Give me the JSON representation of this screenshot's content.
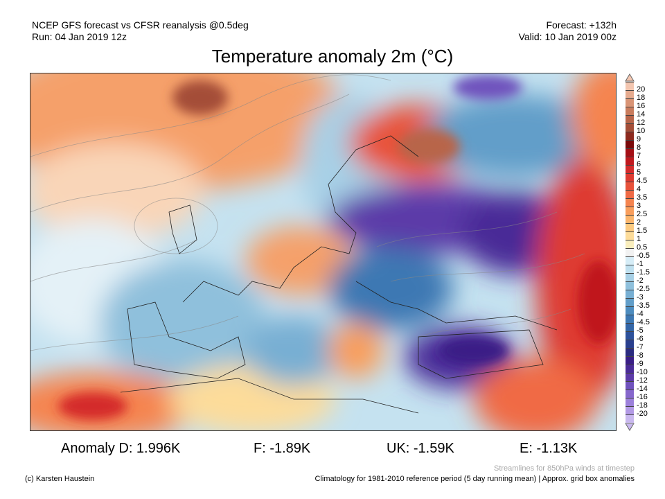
{
  "header": {
    "left_line1": "NCEP GFS forecast vs CFSR reanalysis @0.5deg",
    "left_line2": "Run: 04 Jan 2019 12z",
    "right_line1": "Forecast: +132h",
    "right_line2": "Valid: 10 Jan 2019 00z"
  },
  "title": "Temperature anomaly 2m (°C)",
  "colorbar": {
    "labels": [
      "20",
      "18",
      "16",
      "14",
      "12",
      "10",
      "9",
      "8",
      "7",
      "6",
      "5",
      "4.5",
      "4",
      "3.5",
      "3",
      "2.5",
      "2",
      "1.5",
      "1",
      "0.5",
      "-0.5",
      "-1",
      "-1.5",
      "-2",
      "-2.5",
      "-3",
      "-3.5",
      "-4",
      "-4.5",
      "-5",
      "-6",
      "-7",
      "-8",
      "-9",
      "-10",
      "-12",
      "-14",
      "-16",
      "-18",
      "-20"
    ],
    "colors": [
      "#f3c6b0",
      "#e6ab8f",
      "#d99475",
      "#c97c5d",
      "#b8654a",
      "#a44e38",
      "#8e2a1e",
      "#7a0a0a",
      "#a50f15",
      "#c0181d",
      "#d42a2a",
      "#de3a30",
      "#e8523a",
      "#f06a45",
      "#f5844f",
      "#f99e5c",
      "#fbb56c",
      "#fcca80",
      "#fddc9a",
      "#faeebd",
      "#f2f2f2",
      "#d6edf7",
      "#bfe0ef",
      "#a7d0e6",
      "#8fc0dc",
      "#78afd3",
      "#629ec9",
      "#4d8cbf",
      "#3d78b3",
      "#3366a8",
      "#2d519b",
      "#2a3f8e",
      "#2b2b80",
      "#3a1e86",
      "#4a2b97",
      "#5c3aa8",
      "#7052bd",
      "#8667cc",
      "#9c80db",
      "#b39ae6",
      "#c9b8ef"
    ]
  },
  "anomalies": {
    "d": "Anomaly D: 1.996K",
    "f": "F: -1.89K",
    "uk": "UK: -1.59K",
    "e": "E: -1.13K"
  },
  "footer": {
    "credit": "(c) Karsten Haustein",
    "streamlines": "Streamlines for 850hPa winds at timestep",
    "climatology": "Climatology for 1981-2010 reference period (5 day running mean) | Approx. grid box anomalies"
  }
}
